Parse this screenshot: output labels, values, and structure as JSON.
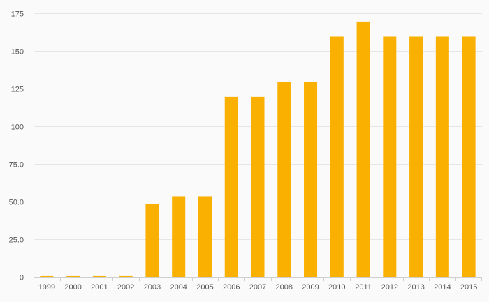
{
  "chart_data": {
    "type": "bar",
    "categories": [
      "1999",
      "2000",
      "2001",
      "2002",
      "2003",
      "2004",
      "2005",
      "2006",
      "2007",
      "2008",
      "2009",
      "2010",
      "2011",
      "2012",
      "2013",
      "2014",
      "2015"
    ],
    "values": [
      0.5,
      0.5,
      0.5,
      0.5,
      48.5,
      53.5,
      53.5,
      119.5,
      119.5,
      129.5,
      129.5,
      159.5,
      169.5,
      159.5,
      159.5,
      159.5,
      159.5
    ],
    "ylim": [
      0,
      175
    ],
    "y_ticks": [
      {
        "value": 0,
        "label": "0"
      },
      {
        "value": 25,
        "label": "25.0"
      },
      {
        "value": 50,
        "label": "50.0"
      },
      {
        "value": 75,
        "label": "75.0"
      },
      {
        "value": 100,
        "label": "100"
      },
      {
        "value": 125,
        "label": "125"
      },
      {
        "value": 150,
        "label": "150"
      },
      {
        "value": 175,
        "label": "175"
      }
    ],
    "grid": true,
    "bar_color": "#f9b000",
    "background": "#fafafa"
  }
}
